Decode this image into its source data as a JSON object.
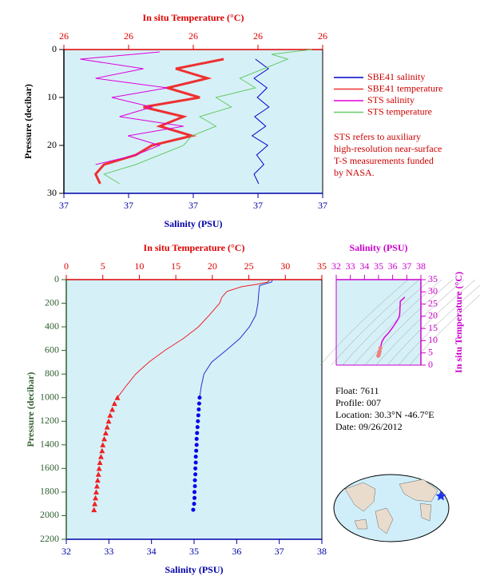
{
  "chart_data": [
    {
      "type": "profile",
      "x_label": "Salinity (PSU)",
      "x2_label": "In situ Temperature (°C)",
      "y_label": "Pressure (decibar)",
      "axis_colors": {
        "x": "#0000aa",
        "x2": "#dd0000",
        "y": "#000000"
      },
      "xlim": [
        36.8,
        37.2
      ],
      "xticks": [
        {
          "value": 36.8,
          "label": "37"
        },
        {
          "value": 36.9,
          "label": "37"
        },
        {
          "value": 37.0,
          "label": "37"
        },
        {
          "value": 37.1,
          "label": "37"
        },
        {
          "value": 37.2,
          "label": "37"
        }
      ],
      "x2lim": [
        25.8,
        26.2
      ],
      "x2ticks": [
        {
          "value": 25.8,
          "label": "26"
        },
        {
          "value": 25.9,
          "label": "26"
        },
        {
          "value": 26.0,
          "label": "26"
        },
        {
          "value": 26.1,
          "label": "26"
        },
        {
          "value": 26.2,
          "label": "26"
        }
      ],
      "ylim": [
        0,
        30
      ],
      "yticks": [
        0,
        10,
        20,
        30
      ],
      "y_inverted": true,
      "legend": "right",
      "series": [
        {
          "name": "SBE41 salinity",
          "color": "#0000cc",
          "pressure": [
            2,
            4,
            6,
            8,
            10,
            12,
            14,
            16,
            18,
            20,
            22,
            24,
            26,
            28
          ],
          "values": [
            37.096,
            37.116,
            37.094,
            37.114,
            37.099,
            37.117,
            37.095,
            37.112,
            37.091,
            37.115,
            37.098,
            37.109,
            37.094,
            37.101
          ]
        },
        {
          "name": "SBE41 temperature",
          "color": "#ee3030",
          "axis": "x2",
          "pressure": [
            2,
            4,
            6,
            8,
            10,
            12,
            14,
            16,
            18,
            20,
            22,
            24,
            26,
            28
          ],
          "values": [
            26.047,
            25.973,
            26.022,
            25.96,
            26.01,
            25.923,
            25.985,
            25.948,
            25.998,
            25.936,
            25.911,
            25.862,
            25.849,
            25.856
          ]
        },
        {
          "name": "STS salinity",
          "color": "#dd00dd",
          "pressure": [
            0.5,
            2,
            4,
            6,
            8,
            10,
            12,
            14,
            16,
            18,
            20,
            22,
            24
          ],
          "values": [
            36.948,
            36.825,
            36.923,
            36.849,
            36.96,
            36.874,
            36.936,
            36.886,
            36.985,
            36.899,
            36.948,
            36.911,
            36.849
          ]
        },
        {
          "name": "STS temperature",
          "color": "#66cc66",
          "axis": "x2",
          "pressure": [
            0,
            1,
            2,
            4,
            6,
            8,
            10,
            12,
            14,
            16,
            18,
            20,
            22,
            24,
            26,
            28
          ],
          "values": [
            26.183,
            26.121,
            26.146,
            26.109,
            26.072,
            26.096,
            26.035,
            26.059,
            26.01,
            26.035,
            25.998,
            25.985,
            25.948,
            25.911,
            25.862,
            25.886
          ]
        }
      ],
      "annotation": [
        "STS refers to auxiliary",
        "high-resolution near-surface",
        "T-S measurements funded",
        "by NASA."
      ]
    },
    {
      "type": "profile",
      "x_label": "Salinity (PSU)",
      "x2_label": "In situ Temperature (°C)",
      "y_label": "Pressure (decibar)",
      "axis_colors": {
        "x": "#0000aa",
        "x2": "#dd0000",
        "y": "#2f5f2f"
      },
      "xlim": [
        32,
        38
      ],
      "xticks": [
        32,
        33,
        34,
        35,
        36,
        37,
        38
      ],
      "x2lim": [
        0,
        35
      ],
      "x2ticks": [
        0,
        5,
        10,
        15,
        20,
        25,
        30,
        35
      ],
      "ylim": [
        0,
        2200
      ],
      "yticks": [
        0,
        200,
        400,
        600,
        800,
        1000,
        1200,
        1400,
        1600,
        1800,
        2000,
        2200
      ],
      "y_inverted": true,
      "series": [
        {
          "color": "#ee2222",
          "axis": "x2",
          "pressure": [
            0,
            20,
            40,
            60,
            100,
            150,
            200,
            300,
            400,
            500,
            600,
            700,
            800,
            900,
            1000
          ],
          "values": [
            27.9,
            27.6,
            26.1,
            24.0,
            22.0,
            21.3,
            21.0,
            19.6,
            18.1,
            16.0,
            13.5,
            11.3,
            9.5,
            8.2,
            7.0
          ]
        },
        {
          "color": "#ee2222",
          "axis": "x2",
          "marker": "triangle",
          "pressure": [
            1000,
            1050,
            1100,
            1150,
            1200,
            1250,
            1300,
            1350,
            1400,
            1450,
            1500,
            1550,
            1600,
            1650,
            1700,
            1750,
            1800,
            1850,
            1900,
            1950
          ],
          "values": [
            7.0,
            6.6,
            6.3,
            6.0,
            5.8,
            5.6,
            5.4,
            5.2,
            5.0,
            4.9,
            4.75,
            4.6,
            4.5,
            4.4,
            4.3,
            4.2,
            4.1,
            4.0,
            3.9,
            3.8
          ]
        },
        {
          "color": "#2233cc",
          "pressure": [
            0,
            20,
            50,
            100,
            200,
            300,
            400,
            500,
            600,
            700,
            800,
            900,
            1000
          ],
          "values": [
            36.84,
            36.82,
            36.54,
            36.52,
            36.5,
            36.45,
            36.3,
            36.07,
            35.75,
            35.41,
            35.23,
            35.17,
            35.13
          ]
        },
        {
          "color": "#0000ee",
          "marker": "circle",
          "pressure": [
            1000,
            1050,
            1100,
            1150,
            1200,
            1250,
            1300,
            1350,
            1400,
            1450,
            1500,
            1550,
            1600,
            1650,
            1700,
            1750,
            1800,
            1850,
            1900,
            1950
          ],
          "values": [
            35.13,
            35.12,
            35.11,
            35.1,
            35.09,
            35.08,
            35.07,
            35.06,
            35.06,
            35.05,
            35.04,
            35.04,
            35.03,
            35.03,
            35.02,
            35.02,
            35.01,
            35.01,
            35.0,
            34.98
          ]
        }
      ]
    },
    {
      "type": "line",
      "x_label": "Salinity (PSU)",
      "y_label": "In situ Temperature (°C)",
      "axis_colors": {
        "x": "#cc00cc",
        "y": "#cc00cc"
      },
      "xlim": [
        32,
        38
      ],
      "xticks": [
        32,
        33,
        34,
        35,
        36,
        37,
        38
      ],
      "ylim": [
        0,
        35
      ],
      "yticks": [
        0,
        5,
        10,
        15,
        20,
        25,
        30,
        35
      ],
      "series": [
        {
          "color": "#dd00dd",
          "x": [
            36.84,
            36.82,
            36.54,
            36.5,
            36.45,
            36.3,
            36.07,
            35.75,
            35.41,
            35.23,
            35.13,
            35.05,
            34.98
          ],
          "values": [
            27.9,
            27.6,
            26.1,
            21.0,
            19.6,
            18.1,
            16.0,
            13.5,
            11.3,
            9.5,
            7.0,
            5.0,
            3.8
          ]
        },
        {
          "color": "#f08080",
          "marker": "circle",
          "x": [
            35.13,
            35.08,
            35.04,
            35.01,
            34.98
          ],
          "values": [
            7.0,
            5.6,
            4.75,
            4.2,
            3.8
          ]
        }
      ]
    }
  ],
  "float_info": [
    "Float:  7611",
    "Profile:  007",
    "Location:  30.3°N  -46.7°E",
    "Date:  09/26/2012"
  ]
}
